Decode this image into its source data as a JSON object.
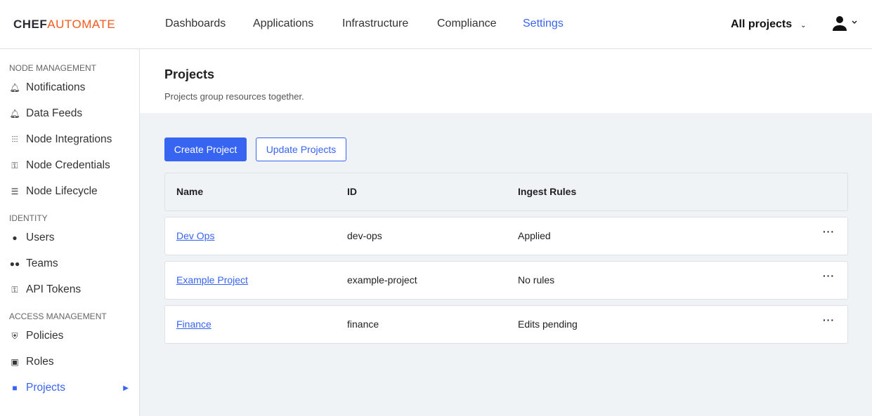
{
  "header": {
    "logo_a": "CHEF",
    "logo_b": "AUTOMATE",
    "nav": [
      "Dashboards",
      "Applications",
      "Infrastructure",
      "Compliance",
      "Settings"
    ],
    "active_nav": "Settings",
    "project_filter": "All projects"
  },
  "sidebar": {
    "sections": [
      {
        "title": "NODE MANAGEMENT",
        "items": [
          {
            "label": "Notifications",
            "icon": "bell-icon"
          },
          {
            "label": "Data Feeds",
            "icon": "bell-icon"
          },
          {
            "label": "Node Integrations",
            "icon": "sliders-icon"
          },
          {
            "label": "Node Credentials",
            "icon": "key-icon"
          },
          {
            "label": "Node Lifecycle",
            "icon": "list-icon"
          }
        ]
      },
      {
        "title": "IDENTITY",
        "items": [
          {
            "label": "Users",
            "icon": "user-icon"
          },
          {
            "label": "Teams",
            "icon": "group-icon"
          },
          {
            "label": "API Tokens",
            "icon": "key-icon"
          }
        ]
      },
      {
        "title": "ACCESS MANAGEMENT",
        "items": [
          {
            "label": "Policies",
            "icon": "shield-icon"
          },
          {
            "label": "Roles",
            "icon": "badge-icon"
          },
          {
            "label": "Projects",
            "icon": "briefcase-icon",
            "active": true
          }
        ]
      }
    ]
  },
  "page": {
    "title": "Projects",
    "subtitle": "Projects group resources together.",
    "create": "Create Project",
    "update": "Update Projects"
  },
  "table": {
    "headers": [
      "Name",
      "ID",
      "Ingest Rules"
    ],
    "rows": [
      {
        "name": "Dev Ops",
        "id": "dev-ops",
        "rules": "Applied"
      },
      {
        "name": "Example Project",
        "id": "example-project",
        "rules": "No rules"
      },
      {
        "name": "Finance",
        "id": "finance",
        "rules": "Edits pending"
      }
    ],
    "menu": "···"
  },
  "colors": {
    "accent": "#3864f2",
    "brand": "#f25a1c"
  }
}
